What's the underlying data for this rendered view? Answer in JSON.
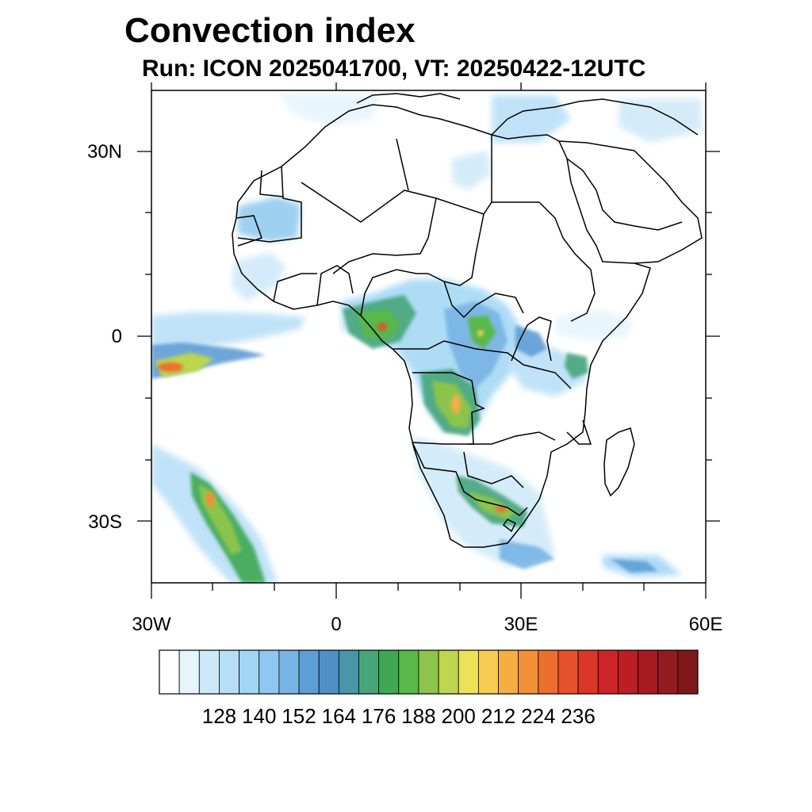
{
  "title": "Convection index",
  "subtitle": "Run: ICON 2025041700,  VT: 20250422-12UTC",
  "map": {
    "region": "Africa",
    "lat_ticks": [
      {
        "value": 30,
        "label": "30N"
      },
      {
        "value": 0,
        "label": "0"
      },
      {
        "value": -30,
        "label": "30S"
      }
    ],
    "lon_ticks": [
      {
        "value": -30,
        "label": "30W"
      },
      {
        "value": 0,
        "label": "0"
      },
      {
        "value": 30,
        "label": "30E"
      },
      {
        "value": 60,
        "label": "60E"
      }
    ],
    "lon_range": [
      -30,
      60
    ],
    "lat_range": [
      -40,
      40
    ]
  },
  "colorbar": {
    "labels": [
      "128",
      "140",
      "152",
      "164",
      "176",
      "188",
      "200",
      "212",
      "224",
      "236"
    ],
    "colors": [
      "#ffffff",
      "#e6f4fc",
      "#cde9f8",
      "#b6def7",
      "#a0d6f4",
      "#8ec8ee",
      "#78b4e4",
      "#5f9dd6",
      "#4f8fc6",
      "#4896a8",
      "#46a67a",
      "#3ea852",
      "#58b848",
      "#8cc44c",
      "#bcd64e",
      "#ece25a",
      "#f8cc50",
      "#f6ae44",
      "#f29038",
      "#ee6e2e",
      "#e6502a",
      "#dc3628",
      "#cc2428",
      "#bc1e26",
      "#a81a22",
      "#921c1e",
      "#7e1818"
    ]
  }
}
